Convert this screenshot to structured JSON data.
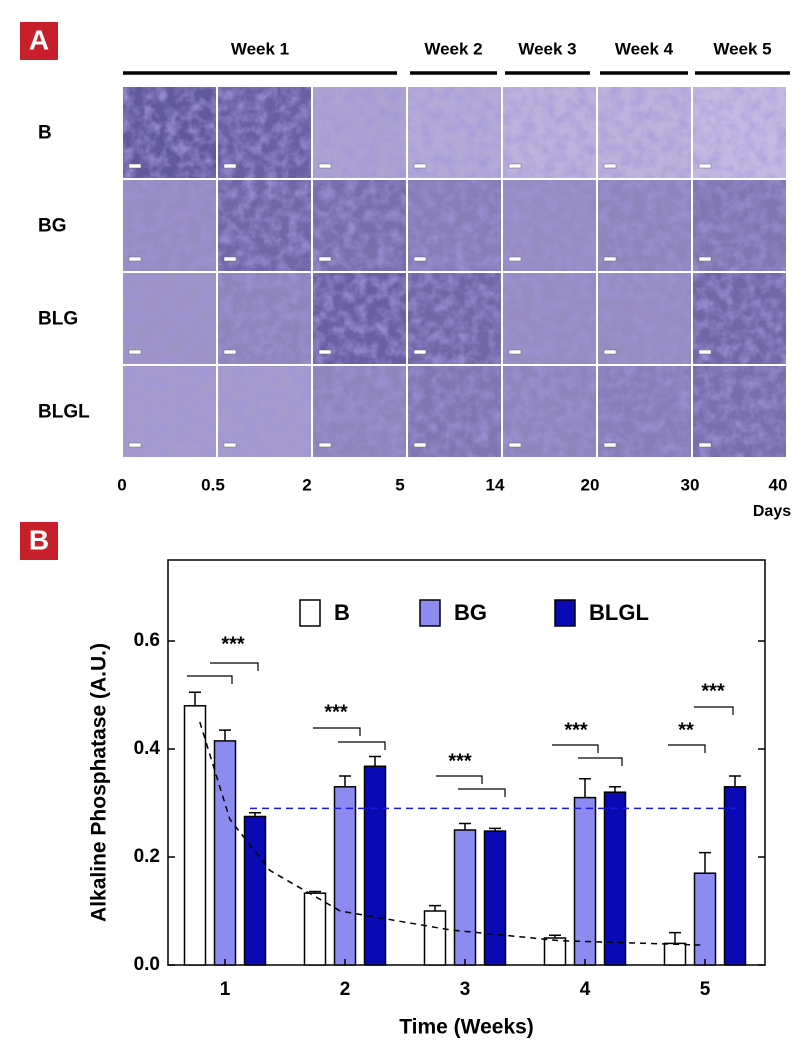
{
  "panel_a": {
    "label": "A",
    "weeks": [
      "Week 1",
      "Week 2",
      "Week 3",
      "Week 4",
      "Week 5"
    ],
    "rows": [
      "B",
      "BG",
      "BLG",
      "BLGL"
    ],
    "day_ticks": [
      "0",
      "0.5",
      "2",
      "5",
      "14",
      "20",
      "30",
      "40"
    ],
    "days_label": "Days"
  },
  "panel_b": {
    "label": "B"
  },
  "chart_data": {
    "type": "bar",
    "xlabel": "Time (Weeks)",
    "ylabel": "Alkaline Phosphatase (A.U.)",
    "categories": [
      "1",
      "2",
      "3",
      "4",
      "5"
    ],
    "series": [
      {
        "name": "B",
        "color": "#ffffff",
        "values": [
          0.48,
          0.133,
          0.1,
          0.05,
          0.04
        ],
        "errors": [
          0.025,
          0.003,
          0.01,
          0.005,
          0.02
        ]
      },
      {
        "name": "BG",
        "color": "#8c8cf0",
        "values": [
          0.415,
          0.33,
          0.25,
          0.31,
          0.17
        ],
        "errors": [
          0.02,
          0.02,
          0.012,
          0.035,
          0.038
        ]
      },
      {
        "name": "BLGL",
        "color": "#0a0ab4",
        "values": [
          0.275,
          0.368,
          0.248,
          0.32,
          0.33
        ],
        "errors": [
          0.007,
          0.018,
          0.005,
          0.01,
          0.02
        ]
      }
    ],
    "ylim": [
      0,
      0.75
    ],
    "yticks": [
      {
        "value": 0,
        "label": "0.0"
      },
      0.2,
      0.4,
      0.6
    ],
    "reference_line": {
      "value": 0.29,
      "color": "#1a1ae0"
    },
    "fit_curve": {
      "x": [
        0.79,
        1.04,
        1.375,
        1.96,
        2.875,
        3.79,
        4.96
      ],
      "y": [
        0.45,
        0.27,
        0.175,
        0.1,
        0.065,
        0.045,
        0.037
      ]
    },
    "annotations": [
      "***",
      "***",
      "***",
      "***",
      "**",
      "***"
    ]
  }
}
